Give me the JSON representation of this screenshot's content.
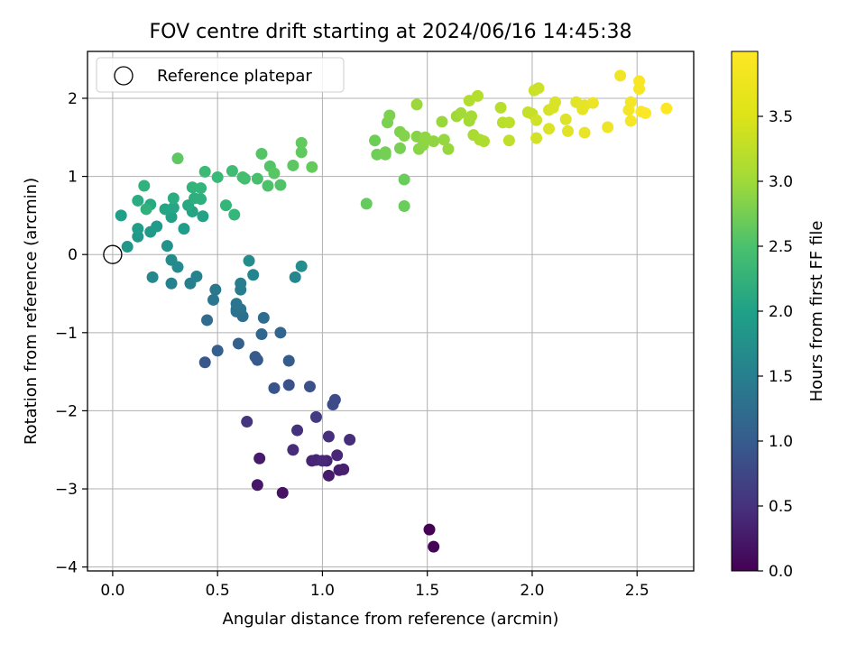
{
  "chart_data": {
    "type": "scatter",
    "title": "FOV centre drift starting at 2024/06/16 14:45:38",
    "xlabel": "Angular distance from reference (arcmin)",
    "ylabel": "Rotation from reference (arcmin)",
    "xlim": [
      -0.12,
      2.77
    ],
    "ylim": [
      -4.05,
      2.6
    ],
    "xticks": [
      "0.0",
      "0.5",
      "1.0",
      "1.5",
      "2.0",
      "2.5"
    ],
    "yticks": [
      "−4",
      "−3",
      "−2",
      "−1",
      "0",
      "1",
      "2"
    ],
    "grid": true,
    "legend": {
      "placement": "top-left",
      "entries": [
        "Reference platepar"
      ]
    },
    "colorbar": {
      "label": "Hours from first FF file",
      "colormap": "viridis",
      "range": [
        0.0,
        4.0
      ],
      "ticks": [
        "0.0",
        "0.5",
        "1.0",
        "1.5",
        "2.0",
        "2.5",
        "3.0",
        "3.5"
      ]
    },
    "reference_point": {
      "x": 0.0,
      "y": 0.0
    },
    "points": [
      [
        1.51,
        -3.52,
        0.02
      ],
      [
        1.53,
        -3.74,
        0.04
      ],
      [
        0.81,
        -3.05,
        0.2
      ],
      [
        0.69,
        -2.95,
        0.25
      ],
      [
        0.7,
        -2.61,
        0.28
      ],
      [
        1.03,
        -2.83,
        0.3
      ],
      [
        1.08,
        -2.76,
        0.33
      ],
      [
        1.1,
        -2.75,
        0.35
      ],
      [
        1.02,
        -2.64,
        0.37
      ],
      [
        0.95,
        -2.64,
        0.4
      ],
      [
        0.97,
        -2.63,
        0.42
      ],
      [
        1.0,
        -2.64,
        0.44
      ],
      [
        1.07,
        -2.57,
        0.46
      ],
      [
        0.86,
        -2.5,
        0.5
      ],
      [
        1.13,
        -2.37,
        0.52
      ],
      [
        1.03,
        -2.33,
        0.55
      ],
      [
        0.88,
        -2.25,
        0.58
      ],
      [
        0.64,
        -2.14,
        0.6
      ],
      [
        0.97,
        -2.08,
        0.7
      ],
      [
        1.06,
        -1.86,
        0.9
      ],
      [
        1.05,
        -1.92,
        0.92
      ],
      [
        0.94,
        -1.69,
        1.0
      ],
      [
        0.84,
        -1.67,
        1.02
      ],
      [
        0.77,
        -1.71,
        1.05
      ],
      [
        0.44,
        -1.38,
        1.1
      ],
      [
        0.69,
        -1.35,
        1.12
      ],
      [
        0.68,
        -1.31,
        1.14
      ],
      [
        0.84,
        -1.36,
        1.16
      ],
      [
        0.5,
        -1.23,
        1.2
      ],
      [
        0.6,
        -1.14,
        1.22
      ],
      [
        0.8,
        -1.0,
        1.3
      ],
      [
        0.71,
        -1.02,
        1.32
      ],
      [
        0.45,
        -0.84,
        1.4
      ],
      [
        0.72,
        -0.81,
        1.42
      ],
      [
        0.62,
        -0.79,
        1.45
      ],
      [
        0.59,
        -0.73,
        1.48
      ],
      [
        0.59,
        -0.7,
        1.5
      ],
      [
        0.61,
        -0.7,
        1.52
      ],
      [
        0.59,
        -0.63,
        1.55
      ],
      [
        0.48,
        -0.58,
        1.58
      ],
      [
        0.49,
        -0.45,
        1.6
      ],
      [
        0.61,
        -0.45,
        1.65
      ],
      [
        0.61,
        -0.37,
        1.7
      ],
      [
        0.37,
        -0.37,
        1.72
      ],
      [
        0.28,
        -0.37,
        1.75
      ],
      [
        0.4,
        -0.28,
        1.8
      ],
      [
        0.67,
        -0.26,
        1.82
      ],
      [
        0.87,
        -0.29,
        1.85
      ],
      [
        0.19,
        -0.29,
        1.88
      ],
      [
        0.31,
        -0.16,
        1.9
      ],
      [
        0.28,
        -0.07,
        1.92
      ],
      [
        0.65,
        -0.08,
        1.95
      ],
      [
        0.9,
        -0.15,
        1.97
      ],
      [
        0.26,
        0.11,
        2.05
      ],
      [
        0.07,
        0.1,
        2.1
      ],
      [
        0.12,
        0.23,
        2.12
      ],
      [
        0.18,
        0.29,
        2.15
      ],
      [
        0.21,
        0.36,
        2.18
      ],
      [
        0.12,
        0.33,
        2.2
      ],
      [
        0.34,
        0.33,
        2.22
      ],
      [
        0.04,
        0.5,
        2.25
      ],
      [
        0.28,
        0.48,
        2.28
      ],
      [
        0.43,
        0.49,
        2.3
      ],
      [
        0.38,
        0.55,
        2.32
      ],
      [
        0.25,
        0.58,
        2.35
      ],
      [
        0.29,
        0.6,
        2.37
      ],
      [
        0.36,
        0.63,
        2.4
      ],
      [
        0.18,
        0.64,
        2.42
      ],
      [
        0.12,
        0.69,
        2.45
      ],
      [
        0.29,
        0.72,
        2.48
      ],
      [
        0.39,
        0.72,
        2.5
      ],
      [
        0.42,
        0.71,
        2.52
      ],
      [
        0.16,
        0.58,
        2.55
      ],
      [
        0.15,
        0.88,
        2.58
      ],
      [
        0.38,
        0.86,
        2.6
      ],
      [
        0.42,
        0.85,
        2.62
      ],
      [
        0.54,
        0.63,
        2.65
      ],
      [
        0.58,
        0.51,
        2.67
      ],
      [
        0.5,
        0.99,
        2.7
      ],
      [
        0.44,
        1.06,
        2.72
      ],
      [
        0.57,
        1.07,
        2.75
      ],
      [
        0.63,
        0.97,
        2.78
      ],
      [
        0.62,
        0.99,
        2.8
      ],
      [
        0.69,
        0.97,
        2.82
      ],
      [
        0.74,
        0.88,
        2.85
      ],
      [
        0.8,
        0.89,
        2.88
      ],
      [
        0.75,
        1.13,
        2.9
      ],
      [
        0.71,
        1.29,
        2.92
      ],
      [
        0.77,
        1.04,
        2.95
      ],
      [
        0.86,
        1.14,
        2.97
      ],
      [
        0.31,
        1.23,
        2.98
      ],
      [
        0.9,
        1.31,
        3.0
      ],
      [
        0.9,
        1.43,
        3.02
      ],
      [
        0.95,
        1.12,
        3.04
      ],
      [
        1.21,
        0.65,
        3.05
      ],
      [
        1.39,
        0.62,
        3.07
      ],
      [
        1.39,
        0.96,
        3.08
      ],
      [
        1.25,
        1.46,
        3.1
      ],
      [
        1.26,
        1.28,
        3.12
      ],
      [
        1.3,
        1.28,
        3.14
      ],
      [
        1.3,
        1.31,
        3.15
      ],
      [
        1.37,
        1.36,
        3.17
      ],
      [
        1.31,
        1.69,
        3.18
      ],
      [
        1.32,
        1.78,
        3.2
      ],
      [
        1.37,
        1.57,
        3.22
      ],
      [
        1.39,
        1.52,
        3.24
      ],
      [
        1.45,
        1.51,
        3.26
      ],
      [
        1.46,
        1.35,
        3.28
      ],
      [
        1.48,
        1.4,
        3.3
      ],
      [
        1.49,
        1.5,
        3.32
      ],
      [
        1.53,
        1.45,
        3.33
      ],
      [
        1.58,
        1.47,
        3.35
      ],
      [
        1.6,
        1.35,
        3.37
      ],
      [
        1.57,
        1.7,
        3.38
      ],
      [
        1.45,
        1.92,
        3.4
      ],
      [
        1.64,
        1.77,
        3.42
      ],
      [
        1.66,
        1.81,
        3.44
      ],
      [
        1.7,
        1.71,
        3.45
      ],
      [
        1.71,
        1.77,
        3.46
      ],
      [
        1.72,
        1.53,
        3.48
      ],
      [
        1.75,
        1.47,
        3.5
      ],
      [
        1.77,
        1.45,
        3.52
      ],
      [
        1.7,
        1.97,
        3.53
      ],
      [
        1.74,
        2.03,
        3.55
      ],
      [
        1.85,
        1.88,
        3.57
      ],
      [
        1.86,
        1.69,
        3.58
      ],
      [
        1.89,
        1.69,
        3.6
      ],
      [
        1.89,
        1.46,
        3.62
      ],
      [
        1.98,
        1.82,
        3.64
      ],
      [
        2.0,
        1.8,
        3.66
      ],
      [
        2.01,
        2.1,
        3.68
      ],
      [
        2.03,
        2.13,
        3.7
      ],
      [
        2.02,
        1.72,
        3.72
      ],
      [
        2.02,
        1.49,
        3.73
      ],
      [
        2.08,
        1.85,
        3.75
      ],
      [
        2.1,
        1.88,
        3.77
      ],
      [
        2.11,
        1.95,
        3.78
      ],
      [
        2.08,
        1.61,
        3.79
      ],
      [
        2.16,
        1.73,
        3.8
      ],
      [
        2.17,
        1.58,
        3.82
      ],
      [
        2.21,
        1.95,
        3.84
      ],
      [
        2.24,
        1.86,
        3.85
      ],
      [
        2.25,
        1.91,
        3.86
      ],
      [
        2.25,
        1.56,
        3.87
      ],
      [
        2.29,
        1.94,
        3.89
      ],
      [
        2.36,
        1.63,
        3.9
      ],
      [
        2.42,
        2.29,
        3.92
      ],
      [
        2.46,
        1.85,
        3.93
      ],
      [
        2.47,
        1.95,
        3.94
      ],
      [
        2.47,
        1.71,
        3.95
      ],
      [
        2.51,
        2.12,
        3.96
      ],
      [
        2.51,
        2.22,
        3.97
      ],
      [
        2.52,
        1.83,
        3.98
      ],
      [
        2.54,
        1.81,
        3.99
      ],
      [
        2.64,
        1.87,
        4.0
      ]
    ]
  }
}
